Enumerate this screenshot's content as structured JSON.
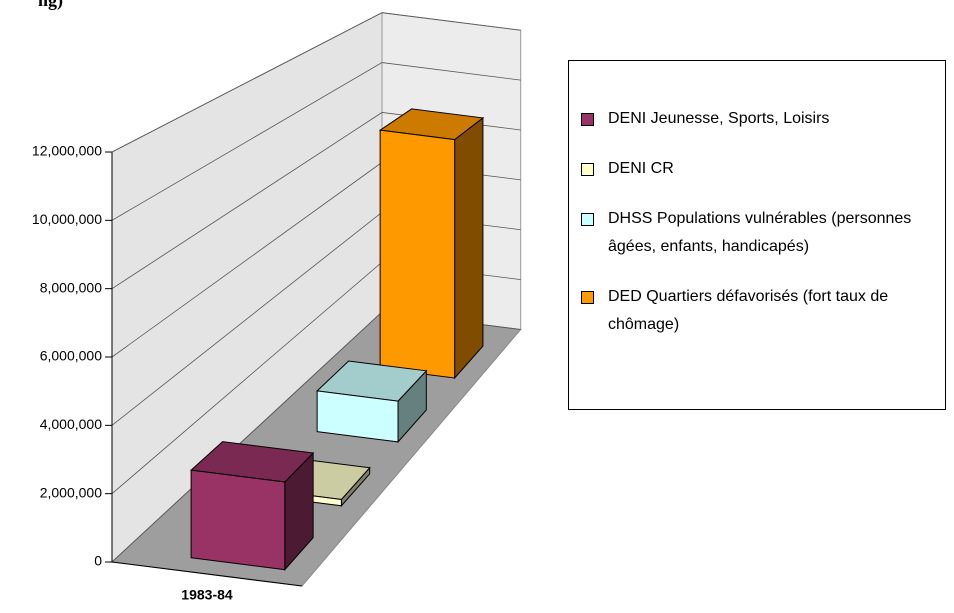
{
  "chart_data": {
    "type": "bar3d",
    "title": "ng)",
    "categories": [
      "1983-84"
    ],
    "series": [
      {
        "name": "DENI Jeunesse, Sports, Loisirs",
        "color": "#993366",
        "values": [
          2600000
        ]
      },
      {
        "name": "DENI CR",
        "color": "#ffffcc",
        "values": [
          200000
        ]
      },
      {
        "name": "DHSS Populations vulnérables (personnes âgées, enfants, handicapés)",
        "color": "#ccffff",
        "values": [
          1400000
        ]
      },
      {
        "name": "DED Quartiers défavorisés (fort taux de chômage)",
        "color": "#ff9900",
        "values": [
          8900000
        ]
      }
    ],
    "ylim": [
      0,
      12000000
    ],
    "yticks": [
      0,
      {
        "value": 2000000,
        "label": "2,000,000"
      },
      {
        "value": 4000000,
        "label": "4,000,000"
      },
      {
        "value": 6000000,
        "label": "6,000,000"
      },
      {
        "value": 8000000,
        "label": "8,000,000"
      },
      {
        "value": 10000000,
        "label": "10,000,000"
      },
      {
        "value": 12000000,
        "label": "12,000,000"
      }
    ],
    "grid": true,
    "legend": "right"
  }
}
